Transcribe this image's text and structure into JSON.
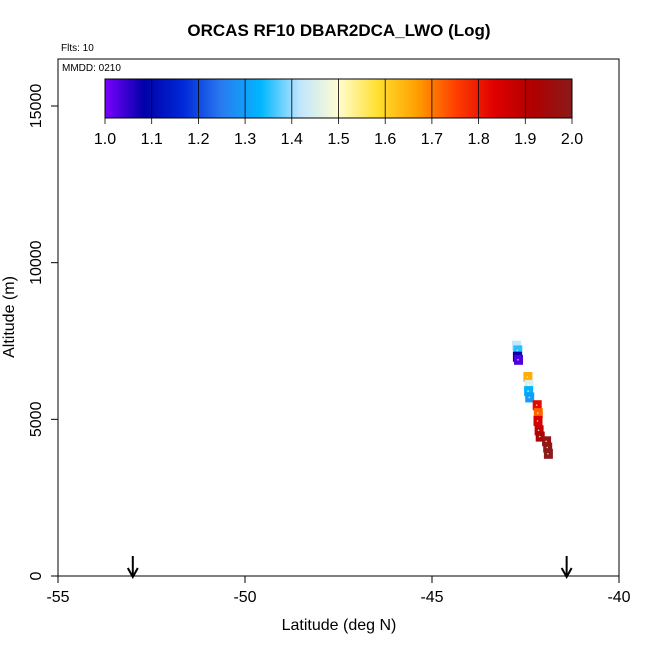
{
  "chart_data": {
    "type": "scatter",
    "title": "ORCAS RF10 DBAR2DCA_LWO (Log)",
    "flights_label": "Flts: 10",
    "date_label": "MMDD: 0210",
    "xlabel": "Latitude (deg N)",
    "ylabel": "Altitude (m)",
    "xlim": [
      -55,
      -40
    ],
    "ylim": [
      0,
      16500
    ],
    "xticks": [
      "-55",
      "-50",
      "-45",
      "-40"
    ],
    "xtick_values": [
      -55,
      -50,
      -45,
      -40
    ],
    "yticks": [
      "0",
      "5000",
      "10000",
      "15000"
    ],
    "ytick_values": [
      0,
      5000,
      10000,
      15000
    ],
    "colorbar": {
      "range": [
        1.0,
        2.0
      ],
      "labels": [
        "1.0",
        "1.1",
        "1.2",
        "1.3",
        "1.4",
        "1.5",
        "1.6",
        "1.7",
        "1.8",
        "1.9",
        "2.0"
      ],
      "colors": [
        "#7b00ff",
        "#0000a8",
        "#0028d8",
        "#2a7bf0",
        "#00b6ff",
        "#bfe6ff",
        "#fffcd0",
        "#ffe030",
        "#ffa000",
        "#ff4000",
        "#e00000",
        "#b00000",
        "#8b1a1a"
      ]
    },
    "arrows": [
      {
        "name": "start-arrow",
        "x": -53.0
      },
      {
        "name": "end-arrow",
        "x": -41.4
      }
    ],
    "points": [
      {
        "lat": -42.75,
        "alt": 7350,
        "value": 1.42
      },
      {
        "lat": -42.72,
        "alt": 7200,
        "value": 1.35
      },
      {
        "lat": -42.73,
        "alt": 7000,
        "value": 1.08
      },
      {
        "lat": -42.7,
        "alt": 6900,
        "value": 1.03
      },
      {
        "lat": -42.45,
        "alt": 6350,
        "value": 1.65
      },
      {
        "lat": -42.42,
        "alt": 6100,
        "value": 1.45
      },
      {
        "lat": -42.43,
        "alt": 5900,
        "value": 1.33
      },
      {
        "lat": -42.4,
        "alt": 5700,
        "value": 1.3
      },
      {
        "lat": -42.2,
        "alt": 5450,
        "value": 1.82
      },
      {
        "lat": -42.17,
        "alt": 5200,
        "value": 1.72
      },
      {
        "lat": -42.18,
        "alt": 4950,
        "value": 1.85
      },
      {
        "lat": -42.15,
        "alt": 4650,
        "value": 1.88
      },
      {
        "lat": -42.12,
        "alt": 4450,
        "value": 1.92
      },
      {
        "lat": -41.95,
        "alt": 4300,
        "value": 1.98
      },
      {
        "lat": -41.92,
        "alt": 4100,
        "value": 1.99
      },
      {
        "lat": -41.9,
        "alt": 3900,
        "value": 2.0
      }
    ]
  }
}
